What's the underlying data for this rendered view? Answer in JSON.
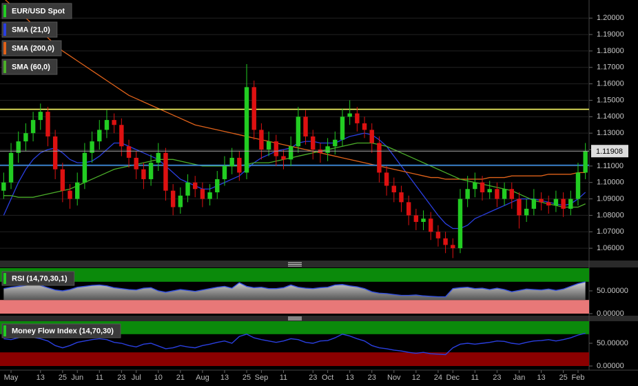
{
  "chart_data": [
    {
      "type": "candlestick",
      "title": "EUR/USD Spot",
      "categories": [
        null,
        "May",
        null,
        null,
        null,
        "13",
        null,
        null,
        "25",
        null,
        "Jun",
        null,
        null,
        "11",
        null,
        null,
        "23",
        null,
        "Jul",
        null,
        null,
        "10",
        null,
        null,
        "21",
        null,
        null,
        "Aug",
        null,
        null,
        "13",
        null,
        null,
        "25",
        null,
        "Sep",
        null,
        null,
        "11",
        null,
        null,
        null,
        "23",
        null,
        "Oct",
        null,
        null,
        "13",
        null,
        null,
        "23",
        null,
        null,
        "Nov",
        null,
        null,
        "12",
        null,
        null,
        "24",
        null,
        "Dec",
        null,
        null,
        "11",
        null,
        null,
        "23",
        null,
        null,
        "Jan",
        null,
        null,
        "13",
        null,
        null,
        "25",
        null,
        "Feb",
        null
      ],
      "open": [
        1.095,
        1.1,
        1.118,
        1.125,
        1.13,
        1.138,
        1.143,
        1.128,
        1.108,
        1.095,
        1.09,
        1.1,
        1.118,
        1.125,
        1.132,
        1.138,
        1.135,
        1.122,
        1.115,
        1.108,
        1.102,
        1.112,
        1.118,
        1.095,
        1.085,
        1.092,
        1.1,
        1.096,
        1.09,
        1.094,
        1.102,
        1.11,
        1.115,
        1.106,
        1.158,
        1.132,
        1.12,
        1.125,
        1.116,
        1.114,
        1.122,
        1.14,
        1.128,
        1.12,
        1.118,
        1.122,
        1.126,
        1.14,
        1.142,
        1.136,
        1.132,
        1.124,
        1.106,
        1.098,
        1.094,
        1.088,
        1.08,
        1.076,
        1.078,
        1.07,
        1.066,
        1.062,
        1.06,
        1.09,
        1.096,
        1.1,
        1.094,
        1.096,
        1.09,
        1.096,
        1.09,
        1.08,
        1.084,
        1.09,
        1.088,
        1.086,
        1.09,
        1.084,
        1.09,
        1.106
      ],
      "high": [
        1.106,
        1.124,
        1.131,
        1.136,
        1.143,
        1.148,
        1.146,
        1.132,
        1.112,
        1.099,
        1.106,
        1.124,
        1.131,
        1.138,
        1.144,
        1.142,
        1.139,
        1.126,
        1.119,
        1.112,
        1.117,
        1.124,
        1.121,
        1.099,
        1.097,
        1.105,
        1.104,
        1.1,
        1.099,
        1.107,
        1.116,
        1.121,
        1.119,
        1.172,
        1.162,
        1.136,
        1.131,
        1.129,
        1.12,
        1.128,
        1.146,
        1.144,
        1.132,
        1.124,
        1.127,
        1.131,
        1.145,
        1.15,
        1.146,
        1.14,
        1.136,
        1.128,
        1.11,
        1.103,
        1.098,
        1.092,
        1.084,
        1.083,
        1.082,
        1.074,
        1.07,
        1.066,
        1.096,
        1.104,
        1.106,
        1.104,
        1.101,
        1.1,
        1.1,
        1.1,
        1.094,
        1.09,
        1.096,
        1.094,
        1.092,
        1.095,
        1.094,
        1.095,
        1.112,
        1.124
      ],
      "low": [
        1.09,
        1.096,
        1.112,
        1.119,
        1.125,
        1.132,
        1.122,
        1.102,
        1.088,
        1.084,
        1.086,
        1.096,
        1.112,
        1.12,
        1.127,
        1.13,
        1.116,
        1.109,
        1.102,
        1.096,
        1.098,
        1.107,
        1.089,
        1.08,
        1.081,
        1.088,
        1.091,
        1.085,
        1.086,
        1.09,
        1.098,
        1.105,
        1.101,
        1.102,
        1.126,
        1.114,
        1.116,
        1.11,
        1.108,
        1.11,
        1.118,
        1.123,
        1.114,
        1.112,
        1.113,
        1.117,
        1.122,
        1.135,
        1.131,
        1.127,
        1.118,
        1.1,
        1.092,
        1.088,
        1.082,
        1.074,
        1.071,
        1.071,
        1.065,
        1.061,
        1.057,
        1.054,
        1.057,
        1.085,
        1.091,
        1.089,
        1.09,
        1.085,
        1.086,
        1.084,
        1.072,
        1.076,
        1.08,
        1.083,
        1.081,
        1.082,
        1.079,
        1.08,
        1.086,
        1.102
      ],
      "close": [
        1.1,
        1.118,
        1.125,
        1.13,
        1.138,
        1.143,
        1.128,
        1.108,
        1.095,
        1.09,
        1.1,
        1.118,
        1.125,
        1.132,
        1.138,
        1.135,
        1.122,
        1.115,
        1.108,
        1.102,
        1.112,
        1.118,
        1.095,
        1.085,
        1.092,
        1.1,
        1.096,
        1.09,
        1.094,
        1.102,
        1.11,
        1.115,
        1.106,
        1.158,
        1.132,
        1.12,
        1.125,
        1.116,
        1.114,
        1.122,
        1.14,
        1.128,
        1.12,
        1.118,
        1.122,
        1.126,
        1.14,
        1.142,
        1.136,
        1.132,
        1.124,
        1.106,
        1.098,
        1.094,
        1.088,
        1.08,
        1.076,
        1.078,
        1.07,
        1.066,
        1.062,
        1.06,
        1.09,
        1.096,
        1.1,
        1.094,
        1.096,
        1.09,
        1.096,
        1.09,
        1.08,
        1.084,
        1.09,
        1.088,
        1.086,
        1.09,
        1.084,
        1.09,
        1.106,
        1.119
      ],
      "up_color": "#22cc22",
      "down_color": "#dd1111",
      "legend_color": "#22cc22",
      "series": [
        {
          "name": "SMA (21,0)",
          "color": "#2a3fe0",
          "values": [
            1.08,
            1.09,
            1.1,
            1.108,
            1.114,
            1.118,
            1.12,
            1.121,
            1.118,
            1.114,
            1.112,
            1.112,
            1.113,
            1.116,
            1.12,
            1.124,
            1.124,
            1.122,
            1.12,
            1.118,
            1.116,
            1.114,
            1.11,
            1.106,
            1.102,
            1.1,
            1.098,
            1.096,
            1.096,
            1.098,
            1.1,
            1.102,
            1.104,
            1.108,
            1.112,
            1.115,
            1.117,
            1.119,
            1.12,
            1.121,
            1.124,
            1.125,
            1.125,
            1.124,
            1.124,
            1.124,
            1.126,
            1.128,
            1.129,
            1.13,
            1.129,
            1.126,
            1.122,
            1.116,
            1.11,
            1.104,
            1.098,
            1.092,
            1.086,
            1.08,
            1.075,
            1.072,
            1.072,
            1.074,
            1.078,
            1.08,
            1.082,
            1.084,
            1.086,
            1.088,
            1.09,
            1.09,
            1.09,
            1.089,
            1.088,
            1.087,
            1.086,
            1.087,
            1.09,
            1.094
          ]
        },
        {
          "name": "SMA (200,0)",
          "color": "#e0621a",
          "values": [
            1.212,
            1.208,
            1.204,
            1.2,
            1.196,
            1.192,
            1.188,
            1.184,
            1.18,
            1.177,
            1.174,
            1.171,
            1.168,
            1.165,
            1.162,
            1.159,
            1.156,
            1.153,
            1.151,
            1.149,
            1.147,
            1.145,
            1.143,
            1.141,
            1.139,
            1.137,
            1.135,
            1.134,
            1.133,
            1.132,
            1.131,
            1.13,
            1.129,
            1.128,
            1.127,
            1.126,
            1.125,
            1.124,
            1.123,
            1.122,
            1.121,
            1.12,
            1.119,
            1.118,
            1.117,
            1.116,
            1.115,
            1.114,
            1.113,
            1.112,
            1.111,
            1.11,
            1.109,
            1.108,
            1.107,
            1.106,
            1.105,
            1.104,
            1.103,
            1.103,
            1.102,
            1.102,
            1.102,
            1.102,
            1.102,
            1.102,
            1.103,
            1.103,
            1.103,
            1.104,
            1.104,
            1.104,
            1.104,
            1.104,
            1.105,
            1.105,
            1.105,
            1.105,
            1.106,
            1.106
          ]
        },
        {
          "name": "SMA (60,0)",
          "color": "#4caf2a",
          "values": [
            1.092,
            1.092,
            1.091,
            1.091,
            1.091,
            1.092,
            1.093,
            1.094,
            1.095,
            1.096,
            1.098,
            1.1,
            1.102,
            1.104,
            1.106,
            1.108,
            1.109,
            1.11,
            1.111,
            1.112,
            1.113,
            1.114,
            1.114,
            1.114,
            1.113,
            1.112,
            1.111,
            1.11,
            1.11,
            1.11,
            1.11,
            1.11,
            1.11,
            1.111,
            1.112,
            1.112,
            1.112,
            1.113,
            1.114,
            1.115,
            1.116,
            1.117,
            1.118,
            1.119,
            1.12,
            1.121,
            1.122,
            1.123,
            1.124,
            1.124,
            1.124,
            1.123,
            1.122,
            1.12,
            1.118,
            1.116,
            1.114,
            1.112,
            1.11,
            1.108,
            1.106,
            1.104,
            1.102,
            1.101,
            1.1,
            1.099,
            1.098,
            1.097,
            1.096,
            1.095,
            1.093,
            1.091,
            1.089,
            1.088,
            1.087,
            1.086,
            1.085,
            1.085,
            1.085,
            1.087
          ]
        }
      ],
      "hlines": [
        {
          "value": 1.1445,
          "color": "#ffff66"
        },
        {
          "value": 1.1105,
          "color": "#3a8ee6"
        }
      ],
      "last_price": 1.11908,
      "ylim": [
        1.0525,
        1.211
      ],
      "yticks": [
        {
          "value": 1.06,
          "label": "1.06000"
        },
        {
          "value": 1.07,
          "label": "1.07000"
        },
        {
          "value": 1.08,
          "label": "1.08000"
        },
        {
          "value": 1.09,
          "label": "1.09000"
        },
        {
          "value": 1.1,
          "label": "1.10000"
        },
        {
          "value": 1.11,
          "label": "1.11000"
        },
        {
          "value": 1.12,
          "label": "1.12000"
        },
        {
          "value": 1.13,
          "label": "1.13000"
        },
        {
          "value": 1.14,
          "label": "1.14000"
        },
        {
          "value": 1.15,
          "label": "1.15000"
        },
        {
          "value": 1.16,
          "label": "1.16000"
        },
        {
          "value": 1.17,
          "label": "1.17000"
        },
        {
          "value": 1.18,
          "label": "1.18000"
        },
        {
          "value": 1.19,
          "label": "1.19000"
        },
        {
          "value": 1.2,
          "label": "1.20000"
        }
      ],
      "grid": true
    },
    {
      "type": "area",
      "title": "RSI (14,70,30,1)",
      "color": "#3350e0",
      "fill": "#9a9a9a",
      "values": [
        55,
        58,
        60,
        62,
        64,
        62,
        57,
        52,
        50,
        53,
        58,
        60,
        62,
        63,
        61,
        57,
        55,
        53,
        52,
        56,
        57,
        50,
        47,
        50,
        53,
        51,
        49,
        52,
        55,
        58,
        60,
        56,
        68,
        60,
        57,
        58,
        55,
        55,
        57,
        63,
        58,
        56,
        55,
        57,
        58,
        63,
        64,
        61,
        59,
        55,
        48,
        45,
        44,
        42,
        40,
        40,
        41,
        39,
        38,
        37,
        37,
        55,
        57,
        58,
        55,
        56,
        53,
        56,
        53,
        48,
        51,
        54,
        53,
        52,
        54,
        51,
        54,
        60,
        66,
        70
      ],
      "bands": [
        {
          "from": 70,
          "to": 100,
          "color": "#0b8a0b"
        },
        {
          "from": 0,
          "to": 30,
          "color": "#e87878"
        }
      ],
      "ylim": [
        0,
        100
      ],
      "yticks": [
        {
          "value": 0,
          "label": "0.00000"
        },
        {
          "value": 50,
          "label": "50.00000"
        }
      ]
    },
    {
      "type": "line",
      "title": "Money Flow Index (14,70,30)",
      "color": "#2a3fe0",
      "values": [
        60,
        58,
        62,
        65,
        63,
        60,
        55,
        45,
        40,
        45,
        52,
        55,
        58,
        60,
        58,
        52,
        50,
        45,
        42,
        48,
        50,
        44,
        38,
        40,
        45,
        42,
        40,
        45,
        48,
        52,
        55,
        50,
        65,
        70,
        62,
        58,
        55,
        52,
        55,
        60,
        58,
        52,
        50,
        55,
        56,
        62,
        70,
        66,
        60,
        55,
        45,
        40,
        38,
        35,
        33,
        30,
        28,
        30,
        27,
        26,
        25,
        40,
        48,
        50,
        48,
        50,
        52,
        55,
        54,
        50,
        48,
        52,
        55,
        56,
        58,
        55,
        58,
        62,
        68,
        72
      ],
      "bands": [
        {
          "from": 70,
          "to": 100,
          "color": "#0b8a0b"
        },
        {
          "from": 0,
          "to": 30,
          "color": "#8b0000"
        }
      ],
      "ylim": [
        0,
        100
      ],
      "yticks": [
        {
          "value": 0,
          "label": "0.00000"
        },
        {
          "value": 50,
          "label": "50.00000"
        }
      ]
    }
  ]
}
